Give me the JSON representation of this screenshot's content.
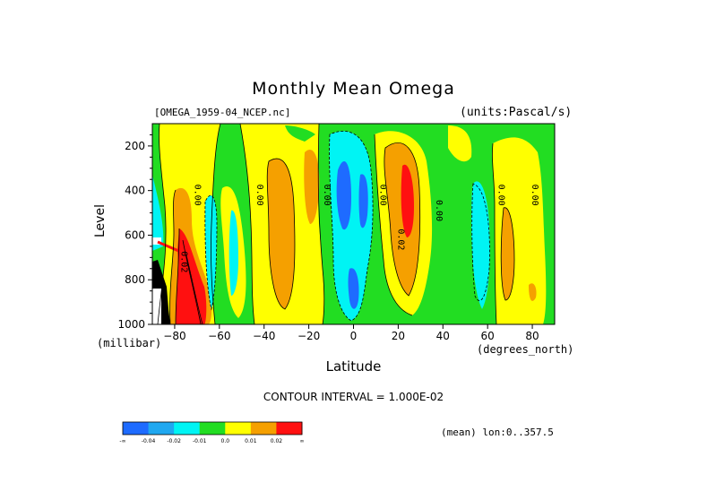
{
  "chart_data": {
    "type": "contour",
    "title": "Monthly Mean Omega",
    "dataset": "[OMEGA_1959-04_NCEP.nc]",
    "units": "(units:Pascal/s)",
    "xlabel": "Latitude",
    "xunits": "(degrees_north)",
    "ylabel": "Level",
    "yunits": "(millibar)",
    "xlim": [
      -90,
      90
    ],
    "ylim": [
      1000,
      100
    ],
    "y_reversed": true,
    "x_ticks": [
      -80,
      -60,
      -40,
      -20,
      0,
      20,
      40,
      60,
      80
    ],
    "x_tick_labels": [
      "−80",
      "−60",
      "−40",
      "−20",
      "0",
      "20",
      "40",
      "60",
      "80"
    ],
    "y_ticks": [
      200,
      400,
      600,
      800,
      1000
    ],
    "y_tick_labels": [
      "200",
      "400",
      "600",
      "800",
      "1000"
    ],
    "contour_interval": "CONTOUR INTERVAL = 1.000E-02",
    "mean_lon": "(mean) lon:0..357.5",
    "contour_labels": [
      {
        "text": "0.00",
        "lat": -71,
        "level": 420
      },
      {
        "text": "0.00",
        "lat": -43,
        "level": 420
      },
      {
        "text": "0.00",
        "lat": -13,
        "level": 420
      },
      {
        "text": "0.00",
        "lat": 12,
        "level": 420
      },
      {
        "text": "0.00",
        "lat": 37,
        "level": 490
      },
      {
        "text": "0.00",
        "lat": 65,
        "level": 420
      },
      {
        "text": "0.00",
        "lat": 80,
        "level": 420
      },
      {
        "text": "0.02",
        "lat": 20,
        "level": 620
      },
      {
        "text": "0.02",
        "lat": -77,
        "level": 720
      }
    ],
    "colorbar": {
      "colors": [
        "#1e6bff",
        "#20a8f0",
        "#00f4f4",
        "#22dd22",
        "#ffff00",
        "#f5a000",
        "#ff1010"
      ],
      "tick_labels": [
        "-∞",
        "-0.04",
        "-0.02",
        "-0.01",
        "0.0",
        "0.01",
        "0.02",
        "∞"
      ]
    }
  }
}
